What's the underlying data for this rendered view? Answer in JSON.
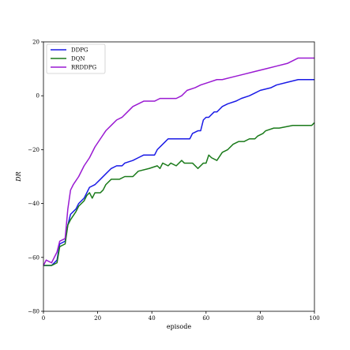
{
  "chart_data": {
    "type": "line",
    "xlabel": "episode",
    "ylabel": "DR",
    "xlim": [
      0,
      100
    ],
    "ylim": [
      -80,
      20
    ],
    "xticks": [
      0,
      20,
      40,
      60,
      80,
      100
    ],
    "yticks": [
      -80,
      -60,
      -40,
      -20,
      0,
      20
    ],
    "grid": false,
    "legend_position": "top-left",
    "series": [
      {
        "name": "DDPG",
        "color": "#1a1ae6",
        "points": [
          [
            0,
            -63
          ],
          [
            3,
            -63
          ],
          [
            5,
            -61
          ],
          [
            6,
            -55
          ],
          [
            8,
            -54
          ],
          [
            9,
            -48
          ],
          [
            10,
            -44
          ],
          [
            12,
            -42
          ],
          [
            13,
            -40
          ],
          [
            15,
            -38
          ],
          [
            17,
            -34
          ],
          [
            19,
            -33
          ],
          [
            21,
            -31
          ],
          [
            23,
            -29
          ],
          [
            25,
            -27
          ],
          [
            27,
            -26
          ],
          [
            29,
            -26
          ],
          [
            30,
            -25
          ],
          [
            33,
            -24
          ],
          [
            35,
            -23
          ],
          [
            37,
            -22
          ],
          [
            41,
            -22
          ],
          [
            42,
            -20
          ],
          [
            45,
            -17
          ],
          [
            46,
            -16
          ],
          [
            54,
            -16
          ],
          [
            55,
            -14
          ],
          [
            57,
            -13
          ],
          [
            58,
            -13
          ],
          [
            59,
            -9
          ],
          [
            60,
            -8
          ],
          [
            61,
            -8
          ],
          [
            62,
            -7
          ],
          [
            63,
            -6
          ],
          [
            64,
            -6
          ],
          [
            65,
            -5
          ],
          [
            66,
            -4
          ],
          [
            68,
            -3
          ],
          [
            71,
            -2
          ],
          [
            73,
            -1
          ],
          [
            76,
            0
          ],
          [
            78,
            1
          ],
          [
            80,
            2
          ],
          [
            84,
            3
          ],
          [
            86,
            4
          ],
          [
            90,
            5
          ],
          [
            94,
            6
          ],
          [
            100,
            6
          ]
        ]
      },
      {
        "name": "DQN",
        "color": "#1a7a1a",
        "points": [
          [
            0,
            -63
          ],
          [
            3,
            -63
          ],
          [
            5,
            -62
          ],
          [
            6,
            -56
          ],
          [
            8,
            -55
          ],
          [
            9,
            -48
          ],
          [
            10,
            -46
          ],
          [
            12,
            -43
          ],
          [
            13,
            -41
          ],
          [
            15,
            -39
          ],
          [
            16,
            -37
          ],
          [
            17,
            -36
          ],
          [
            18,
            -38
          ],
          [
            19,
            -36
          ],
          [
            21,
            -36
          ],
          [
            22,
            -35
          ],
          [
            23,
            -33
          ],
          [
            25,
            -31
          ],
          [
            28,
            -31
          ],
          [
            30,
            -30
          ],
          [
            33,
            -30
          ],
          [
            35,
            -28
          ],
          [
            39,
            -27
          ],
          [
            42,
            -26
          ],
          [
            43,
            -27
          ],
          [
            44,
            -25
          ],
          [
            46,
            -26
          ],
          [
            47,
            -25
          ],
          [
            49,
            -26
          ],
          [
            51,
            -24
          ],
          [
            52,
            -25
          ],
          [
            55,
            -25
          ],
          [
            57,
            -27
          ],
          [
            59,
            -25
          ],
          [
            60,
            -25
          ],
          [
            61,
            -22
          ],
          [
            62,
            -23
          ],
          [
            64,
            -24
          ],
          [
            66,
            -21
          ],
          [
            68,
            -20
          ],
          [
            70,
            -18
          ],
          [
            72,
            -17
          ],
          [
            74,
            -17
          ],
          [
            76,
            -16
          ],
          [
            78,
            -16
          ],
          [
            79,
            -15
          ],
          [
            81,
            -14
          ],
          [
            82,
            -13
          ],
          [
            85,
            -12
          ],
          [
            87,
            -12
          ],
          [
            92,
            -11
          ],
          [
            96,
            -11
          ],
          [
            99,
            -11
          ],
          [
            100,
            -10
          ]
        ]
      },
      {
        "name": "RRDDPG",
        "color": "#9a1ad2",
        "points": [
          [
            0,
            -63
          ],
          [
            1,
            -61
          ],
          [
            3,
            -62
          ],
          [
            5,
            -58
          ],
          [
            6,
            -54
          ],
          [
            8,
            -53
          ],
          [
            9,
            -42
          ],
          [
            10,
            -35
          ],
          [
            11,
            -33
          ],
          [
            13,
            -30
          ],
          [
            15,
            -26
          ],
          [
            17,
            -23
          ],
          [
            19,
            -19
          ],
          [
            21,
            -16
          ],
          [
            23,
            -13
          ],
          [
            25,
            -11
          ],
          [
            27,
            -9
          ],
          [
            29,
            -8
          ],
          [
            31,
            -6
          ],
          [
            33,
            -4
          ],
          [
            35,
            -3
          ],
          [
            37,
            -2
          ],
          [
            41,
            -2
          ],
          [
            43,
            -1
          ],
          [
            49,
            -1
          ],
          [
            51,
            0
          ],
          [
            53,
            2
          ],
          [
            56,
            3
          ],
          [
            58,
            4
          ],
          [
            61,
            5
          ],
          [
            64,
            6
          ],
          [
            66,
            6
          ],
          [
            70,
            7
          ],
          [
            74,
            8
          ],
          [
            78,
            9
          ],
          [
            82,
            10
          ],
          [
            86,
            11
          ],
          [
            90,
            12
          ],
          [
            94,
            14
          ],
          [
            100,
            14
          ]
        ]
      }
    ]
  }
}
